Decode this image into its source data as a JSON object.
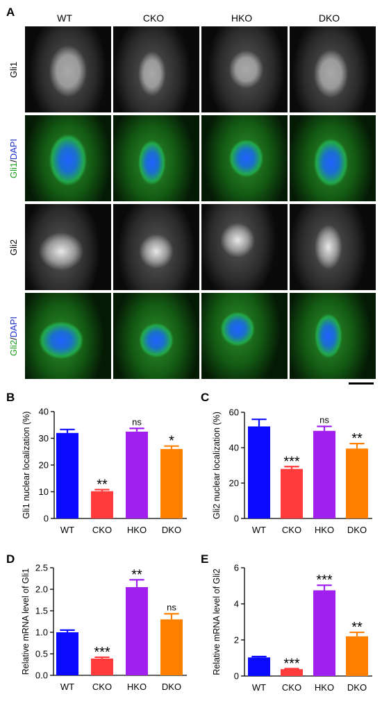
{
  "figure": {
    "panel_letters": [
      "A",
      "B",
      "C",
      "D",
      "E"
    ],
    "columns": [
      "WT",
      "CKO",
      "HKO",
      "DKO"
    ],
    "rows": [
      {
        "label_parts": [
          {
            "text": "Gli1",
            "color": "#000000"
          }
        ],
        "style": "gray"
      },
      {
        "label_parts": [
          {
            "text": "Gli1",
            "color": "#1a9e1a"
          },
          {
            "text": "/",
            "color": "#000000"
          },
          {
            "text": "DAPI",
            "color": "#1c2fd1"
          }
        ],
        "style": "merge"
      },
      {
        "label_parts": [
          {
            "text": "Gli2",
            "color": "#000000"
          }
        ],
        "style": "gray"
      },
      {
        "label_parts": [
          {
            "text": "Gli2",
            "color": "#1a9e1a"
          },
          {
            "text": "/",
            "color": "#000000"
          },
          {
            "text": "DAPI",
            "color": "#1c2fd1"
          }
        ],
        "style": "merge"
      }
    ]
  },
  "colors": {
    "WT": "#0a0aff",
    "CKO": "#ff3b3b",
    "HKO": "#a020f0",
    "DKO": "#ff8000"
  },
  "chart_data": [
    {
      "panel": "B",
      "type": "bar",
      "categories": [
        "WT",
        "CKO",
        "HKO",
        "DKO"
      ],
      "values": [
        32,
        10.2,
        32.5,
        26
      ],
      "errors": [
        1.3,
        0.6,
        1.2,
        1.1
      ],
      "annotations": [
        "",
        "**",
        "ns",
        "*"
      ],
      "ylabel": "Gli1 nuclear localization (%)",
      "ylim": [
        0,
        40
      ],
      "yticks": [
        0,
        10,
        20,
        30,
        40
      ]
    },
    {
      "panel": "C",
      "type": "bar",
      "categories": [
        "WT",
        "CKO",
        "HKO",
        "DKO"
      ],
      "values": [
        52,
        28,
        49.5,
        39.5
      ],
      "errors": [
        4,
        1.3,
        2.5,
        2.8
      ],
      "annotations": [
        "",
        "***",
        "ns",
        "**"
      ],
      "ylabel": "Gli2 nuclear localization (%)",
      "ylim": [
        0,
        60
      ],
      "yticks": [
        0,
        20,
        40,
        60
      ]
    },
    {
      "panel": "D",
      "type": "bar",
      "categories": [
        "WT",
        "CKO",
        "HKO",
        "DKO"
      ],
      "values": [
        1.0,
        0.39,
        2.05,
        1.3
      ],
      "errors": [
        0.05,
        0.03,
        0.17,
        0.13
      ],
      "annotations": [
        "",
        "***",
        "**",
        "ns"
      ],
      "ylabel": "Relative mRNA level of Gli1",
      "ylim": [
        0,
        2.5
      ],
      "yticks": [
        0,
        0.5,
        1.0,
        1.5,
        2.0,
        2.5
      ]
    },
    {
      "panel": "E",
      "type": "bar",
      "categories": [
        "WT",
        "CKO",
        "HKO",
        "DKO"
      ],
      "values": [
        1.03,
        0.38,
        4.75,
        2.2
      ],
      "errors": [
        0.05,
        0.03,
        0.28,
        0.22
      ],
      "annotations": [
        "",
        "***",
        "***",
        "**"
      ],
      "ylabel": "Relative mRNA level of Gli2",
      "ylim": [
        0,
        6
      ],
      "yticks": [
        0,
        2,
        4,
        6
      ]
    }
  ]
}
